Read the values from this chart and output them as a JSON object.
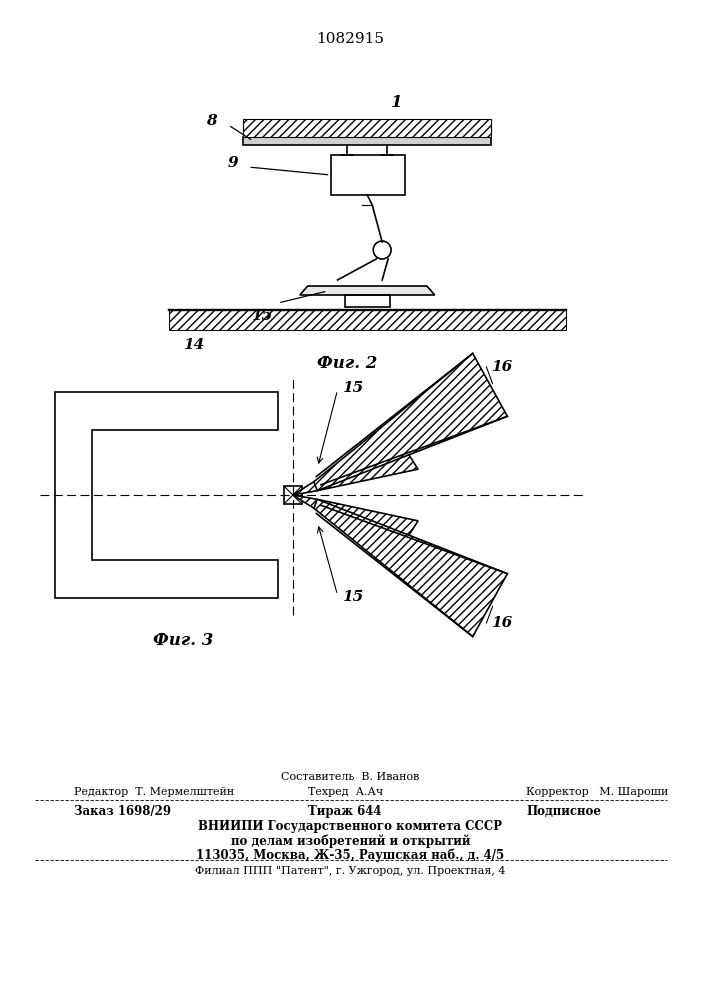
{
  "patent_number": "1082915",
  "fig2_label": "Фиг. 2",
  "fig3_label": "Фиг. 3",
  "label_1": "1",
  "label_8": "8",
  "label_9": "9",
  "label_14": "14",
  "label_15": "15",
  "label_16": "16",
  "bg_color": "#ffffff",
  "line_color": "#000000",
  "footer_sestavitel": "Составитель  В. Иванов",
  "footer_redaktor": "Редактор  Т. Мермелштейн",
  "footer_tehred": "Техред  А.Ач",
  "footer_korrektor": "Корректор   М. Шароши",
  "footer_zakaz": "Заказ 1698/29",
  "footer_tirazh": "Тираж 644",
  "footer_podpisnoe": "Подписное",
  "footer_vniipи": "ВНИИПИ Государственного комитета СССР",
  "footer_po_delam": "по делам изобретений и открытий",
  "footer_addr": "113035, Москва, Ж-35, Раушская наб., д. 4/5",
  "footer_filial": "Филиал ППП \"Патент\", г. Ужгород, ул. Проектная, 4"
}
